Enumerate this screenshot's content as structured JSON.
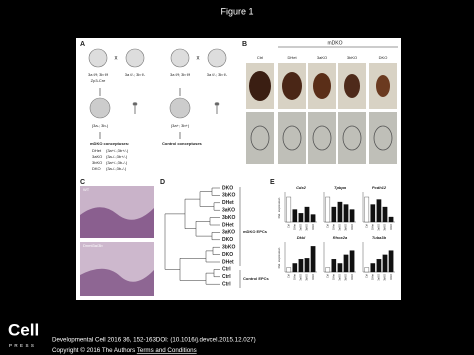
{
  "header": {
    "title": "Figure 1"
  },
  "figure": {
    "a": {
      "letter": "A",
      "female_1": "3a f/f; 3b f/f",
      "cre": "Zp3-Cre",
      "male_1": "3a f/-; 3b f/-",
      "female_2": "3a f/f; 3b f/f",
      "male_2": "3a f/-; 3b f/-",
      "cross": "x",
      "egg_1": "(3a-; 3b-)",
      "egg_2": "(3a+; 3b+)",
      "mdko_title": "mDKO conceptuses:",
      "mdko_list": [
        [
          "DHet",
          "(3a+/-;3b+/-)"
        ],
        [
          "3aKO",
          "(3a-/-;3b+/-)"
        ],
        [
          "3bKO",
          "(3a+/-;3b-/-)"
        ],
        [
          "DKO",
          "(3a-/-;3b-/-)"
        ]
      ],
      "control_title": "Control conceptuses"
    },
    "b": {
      "letter": "B",
      "group": "mDKO",
      "columns": [
        "Ctrl",
        "DHet",
        "3aKO",
        "3bKO",
        "DKO"
      ]
    },
    "c": {
      "letter": "C",
      "labels": [
        "WT",
        "Dnmt3a/3b"
      ]
    },
    "d": {
      "letter": "D",
      "leaves": [
        "DKO",
        "3bKO",
        "DHet",
        "3aKO",
        "3bKO",
        "DHet",
        "3aKO",
        "DKO",
        "3bKO",
        "DKO",
        "DHet",
        "Ctrl",
        "Ctrl",
        "Ctrl"
      ],
      "group_1": "mDKO EPCs",
      "group_2": "Control EPCs"
    },
    "e": {
      "letter": "E",
      "axis_label": "Rel. expression",
      "categories": [
        "Ctrl",
        "DHet",
        "3aKO",
        "3bKO",
        "DKO"
      ],
      "charts": [
        {
          "title": "Cdx2",
          "values": [
            1,
            0.5,
            0.35,
            0.6,
            0.3
          ],
          "ylim": [
            0,
            1.2
          ]
        },
        {
          "title": "Tpbpa",
          "values": [
            1,
            0.6,
            0.8,
            0.7,
            0.5
          ],
          "ylim": [
            0,
            1.2
          ]
        },
        {
          "title": "Pcdh12",
          "values": [
            1,
            0.7,
            0.9,
            0.6,
            0.2
          ],
          "ylim": [
            0,
            1.2
          ]
        },
        {
          "title": "Dkkl",
          "values": [
            1,
            2,
            3,
            3.2,
            6
          ],
          "ylim": [
            0,
            7
          ]
        },
        {
          "title": "Rhox2a",
          "values": [
            1,
            3,
            2,
            4,
            5
          ],
          "ylim": [
            0,
            7
          ]
        },
        {
          "title": "Tuba3b",
          "values": [
            1,
            2,
            3,
            4,
            5
          ],
          "ylim": [
            0,
            7
          ]
        }
      ]
    }
  },
  "logo": {
    "name": "Cell",
    "sub": "PRESS"
  },
  "footer": {
    "citation": "Developmental Cell 2016 36, 152-163DOI: (10.1016/j.devcel.2015.12.027)",
    "copyright": "Copyright © 2016 The Authors ",
    "link": "Terms and Conditions"
  }
}
